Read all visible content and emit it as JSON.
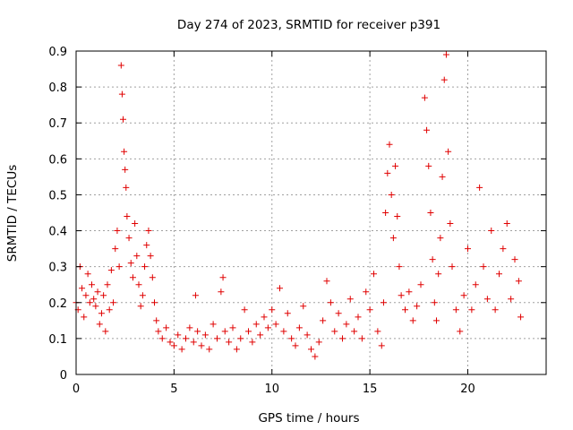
{
  "chart_data": {
    "type": "scatter",
    "title": "Day 274 of 2023, SRMTID for receiver p391",
    "xlabel": "GPS time / hours",
    "ylabel": "SRMTID / TECUs",
    "xlim": [
      0,
      24
    ],
    "ylim": [
      0,
      0.9
    ],
    "xticks": [
      0,
      5,
      10,
      15,
      20
    ],
    "xtick_labels": [
      "0",
      "5",
      "10",
      "15",
      "20"
    ],
    "yticks": [
      0,
      0.1,
      0.2,
      0.3,
      0.4,
      0.5,
      0.6,
      0.7,
      0.8,
      0.9
    ],
    "ytick_labels": [
      "0",
      "0.1",
      "0.2",
      "0.3",
      "0.4",
      "0.5",
      "0.6",
      "0.7",
      "0.8",
      "0.9"
    ],
    "grid": true,
    "marker": "+",
    "color": "#e00000",
    "series": [
      {
        "name": "SRMTID",
        "points": [
          [
            0.0,
            0.2
          ],
          [
            0.1,
            0.18
          ],
          [
            0.2,
            0.3
          ],
          [
            0.3,
            0.24
          ],
          [
            0.4,
            0.16
          ],
          [
            0.5,
            0.22
          ],
          [
            0.6,
            0.28
          ],
          [
            0.7,
            0.2
          ],
          [
            0.8,
            0.25
          ],
          [
            0.9,
            0.21
          ],
          [
            1.0,
            0.19
          ],
          [
            1.1,
            0.23
          ],
          [
            1.2,
            0.14
          ],
          [
            1.3,
            0.17
          ],
          [
            1.4,
            0.22
          ],
          [
            1.5,
            0.12
          ],
          [
            1.6,
            0.25
          ],
          [
            1.7,
            0.18
          ],
          [
            1.8,
            0.29
          ],
          [
            1.9,
            0.2
          ],
          [
            2.0,
            0.35
          ],
          [
            2.1,
            0.4
          ],
          [
            2.2,
            0.3
          ],
          [
            2.3,
            0.86
          ],
          [
            2.35,
            0.78
          ],
          [
            2.4,
            0.71
          ],
          [
            2.45,
            0.62
          ],
          [
            2.5,
            0.57
          ],
          [
            2.55,
            0.52
          ],
          [
            2.6,
            0.44
          ],
          [
            2.7,
            0.38
          ],
          [
            2.8,
            0.31
          ],
          [
            2.9,
            0.27
          ],
          [
            3.0,
            0.42
          ],
          [
            3.1,
            0.33
          ],
          [
            3.2,
            0.25
          ],
          [
            3.3,
            0.19
          ],
          [
            3.4,
            0.22
          ],
          [
            3.5,
            0.3
          ],
          [
            3.6,
            0.36
          ],
          [
            3.7,
            0.4
          ],
          [
            3.8,
            0.33
          ],
          [
            3.9,
            0.27
          ],
          [
            4.0,
            0.2
          ],
          [
            4.1,
            0.15
          ],
          [
            4.2,
            0.12
          ],
          [
            4.4,
            0.1
          ],
          [
            4.6,
            0.13
          ],
          [
            4.8,
            0.09
          ],
          [
            5.0,
            0.08
          ],
          [
            5.2,
            0.11
          ],
          [
            5.4,
            0.07
          ],
          [
            5.6,
            0.1
          ],
          [
            5.8,
            0.13
          ],
          [
            6.0,
            0.09
          ],
          [
            6.1,
            0.22
          ],
          [
            6.2,
            0.12
          ],
          [
            6.4,
            0.08
          ],
          [
            6.6,
            0.11
          ],
          [
            6.8,
            0.07
          ],
          [
            7.0,
            0.14
          ],
          [
            7.2,
            0.1
          ],
          [
            7.4,
            0.23
          ],
          [
            7.5,
            0.27
          ],
          [
            7.6,
            0.12
          ],
          [
            7.8,
            0.09
          ],
          [
            8.0,
            0.13
          ],
          [
            8.2,
            0.07
          ],
          [
            8.4,
            0.1
          ],
          [
            8.6,
            0.18
          ],
          [
            8.8,
            0.12
          ],
          [
            9.0,
            0.09
          ],
          [
            9.2,
            0.14
          ],
          [
            9.4,
            0.11
          ],
          [
            9.6,
            0.16
          ],
          [
            9.8,
            0.13
          ],
          [
            10.0,
            0.18
          ],
          [
            10.2,
            0.14
          ],
          [
            10.4,
            0.24
          ],
          [
            10.6,
            0.12
          ],
          [
            10.8,
            0.17
          ],
          [
            11.0,
            0.1
          ],
          [
            11.2,
            0.08
          ],
          [
            11.4,
            0.13
          ],
          [
            11.6,
            0.19
          ],
          [
            11.8,
            0.11
          ],
          [
            12.0,
            0.07
          ],
          [
            12.2,
            0.05
          ],
          [
            12.4,
            0.09
          ],
          [
            12.6,
            0.15
          ],
          [
            12.8,
            0.26
          ],
          [
            13.0,
            0.2
          ],
          [
            13.2,
            0.12
          ],
          [
            13.4,
            0.17
          ],
          [
            13.6,
            0.1
          ],
          [
            13.8,
            0.14
          ],
          [
            14.0,
            0.21
          ],
          [
            14.2,
            0.12
          ],
          [
            14.4,
            0.16
          ],
          [
            14.6,
            0.1
          ],
          [
            14.8,
            0.23
          ],
          [
            15.0,
            0.18
          ],
          [
            15.2,
            0.28
          ],
          [
            15.4,
            0.12
          ],
          [
            15.6,
            0.08
          ],
          [
            15.7,
            0.2
          ],
          [
            15.8,
            0.45
          ],
          [
            15.9,
            0.56
          ],
          [
            16.0,
            0.64
          ],
          [
            16.1,
            0.5
          ],
          [
            16.2,
            0.38
          ],
          [
            16.3,
            0.58
          ],
          [
            16.4,
            0.44
          ],
          [
            16.5,
            0.3
          ],
          [
            16.6,
            0.22
          ],
          [
            16.8,
            0.18
          ],
          [
            17.0,
            0.23
          ],
          [
            17.2,
            0.15
          ],
          [
            17.4,
            0.19
          ],
          [
            17.6,
            0.25
          ],
          [
            17.8,
            0.77
          ],
          [
            17.9,
            0.68
          ],
          [
            18.0,
            0.58
          ],
          [
            18.1,
            0.45
          ],
          [
            18.2,
            0.32
          ],
          [
            18.3,
            0.2
          ],
          [
            18.4,
            0.15
          ],
          [
            18.5,
            0.28
          ],
          [
            18.6,
            0.38
          ],
          [
            18.7,
            0.55
          ],
          [
            18.8,
            0.82
          ],
          [
            18.9,
            0.89
          ],
          [
            19.0,
            0.62
          ],
          [
            19.1,
            0.42
          ],
          [
            19.2,
            0.3
          ],
          [
            19.4,
            0.18
          ],
          [
            19.6,
            0.12
          ],
          [
            19.8,
            0.22
          ],
          [
            20.0,
            0.35
          ],
          [
            20.2,
            0.18
          ],
          [
            20.4,
            0.25
          ],
          [
            20.6,
            0.52
          ],
          [
            20.8,
            0.3
          ],
          [
            21.0,
            0.21
          ],
          [
            21.2,
            0.4
          ],
          [
            21.4,
            0.18
          ],
          [
            21.6,
            0.28
          ],
          [
            21.8,
            0.35
          ],
          [
            22.0,
            0.42
          ],
          [
            22.2,
            0.21
          ],
          [
            22.4,
            0.32
          ],
          [
            22.6,
            0.26
          ],
          [
            22.7,
            0.16
          ]
        ]
      }
    ]
  }
}
